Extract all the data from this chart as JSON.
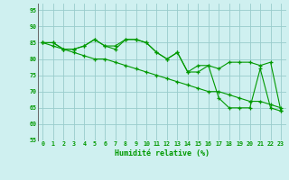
{
  "x": [
    0,
    1,
    2,
    3,
    4,
    5,
    6,
    7,
    8,
    9,
    10,
    11,
    12,
    13,
    14,
    15,
    16,
    17,
    18,
    19,
    20,
    21,
    22,
    23
  ],
  "line1": [
    85,
    85,
    83,
    83,
    84,
    86,
    84,
    84,
    86,
    86,
    85,
    82,
    80,
    82,
    76,
    78,
    78,
    77,
    79,
    79,
    79,
    78,
    79,
    64
  ],
  "line2": [
    85,
    85,
    83,
    83,
    84,
    86,
    84,
    83,
    86,
    86,
    85,
    82,
    80,
    82,
    76,
    76,
    78,
    68,
    65,
    65,
    65,
    77,
    65,
    64
  ],
  "line3": [
    85,
    84,
    83,
    82,
    81,
    80,
    80,
    79,
    78,
    77,
    76,
    75,
    74,
    73,
    72,
    71,
    70,
    70,
    69,
    68,
    67,
    67,
    66,
    65
  ],
  "bg_color": "#cff0f0",
  "grid_color": "#99cccc",
  "line_color": "#009900",
  "xlabel": "Humidité relative (%)",
  "xlim": [
    -0.5,
    23.5
  ],
  "ylim": [
    55,
    97
  ],
  "yticks": [
    55,
    60,
    65,
    70,
    75,
    80,
    85,
    90,
    95
  ],
  "xticks": [
    0,
    1,
    2,
    3,
    4,
    5,
    6,
    7,
    8,
    9,
    10,
    11,
    12,
    13,
    14,
    15,
    16,
    17,
    18,
    19,
    20,
    21,
    22,
    23
  ]
}
